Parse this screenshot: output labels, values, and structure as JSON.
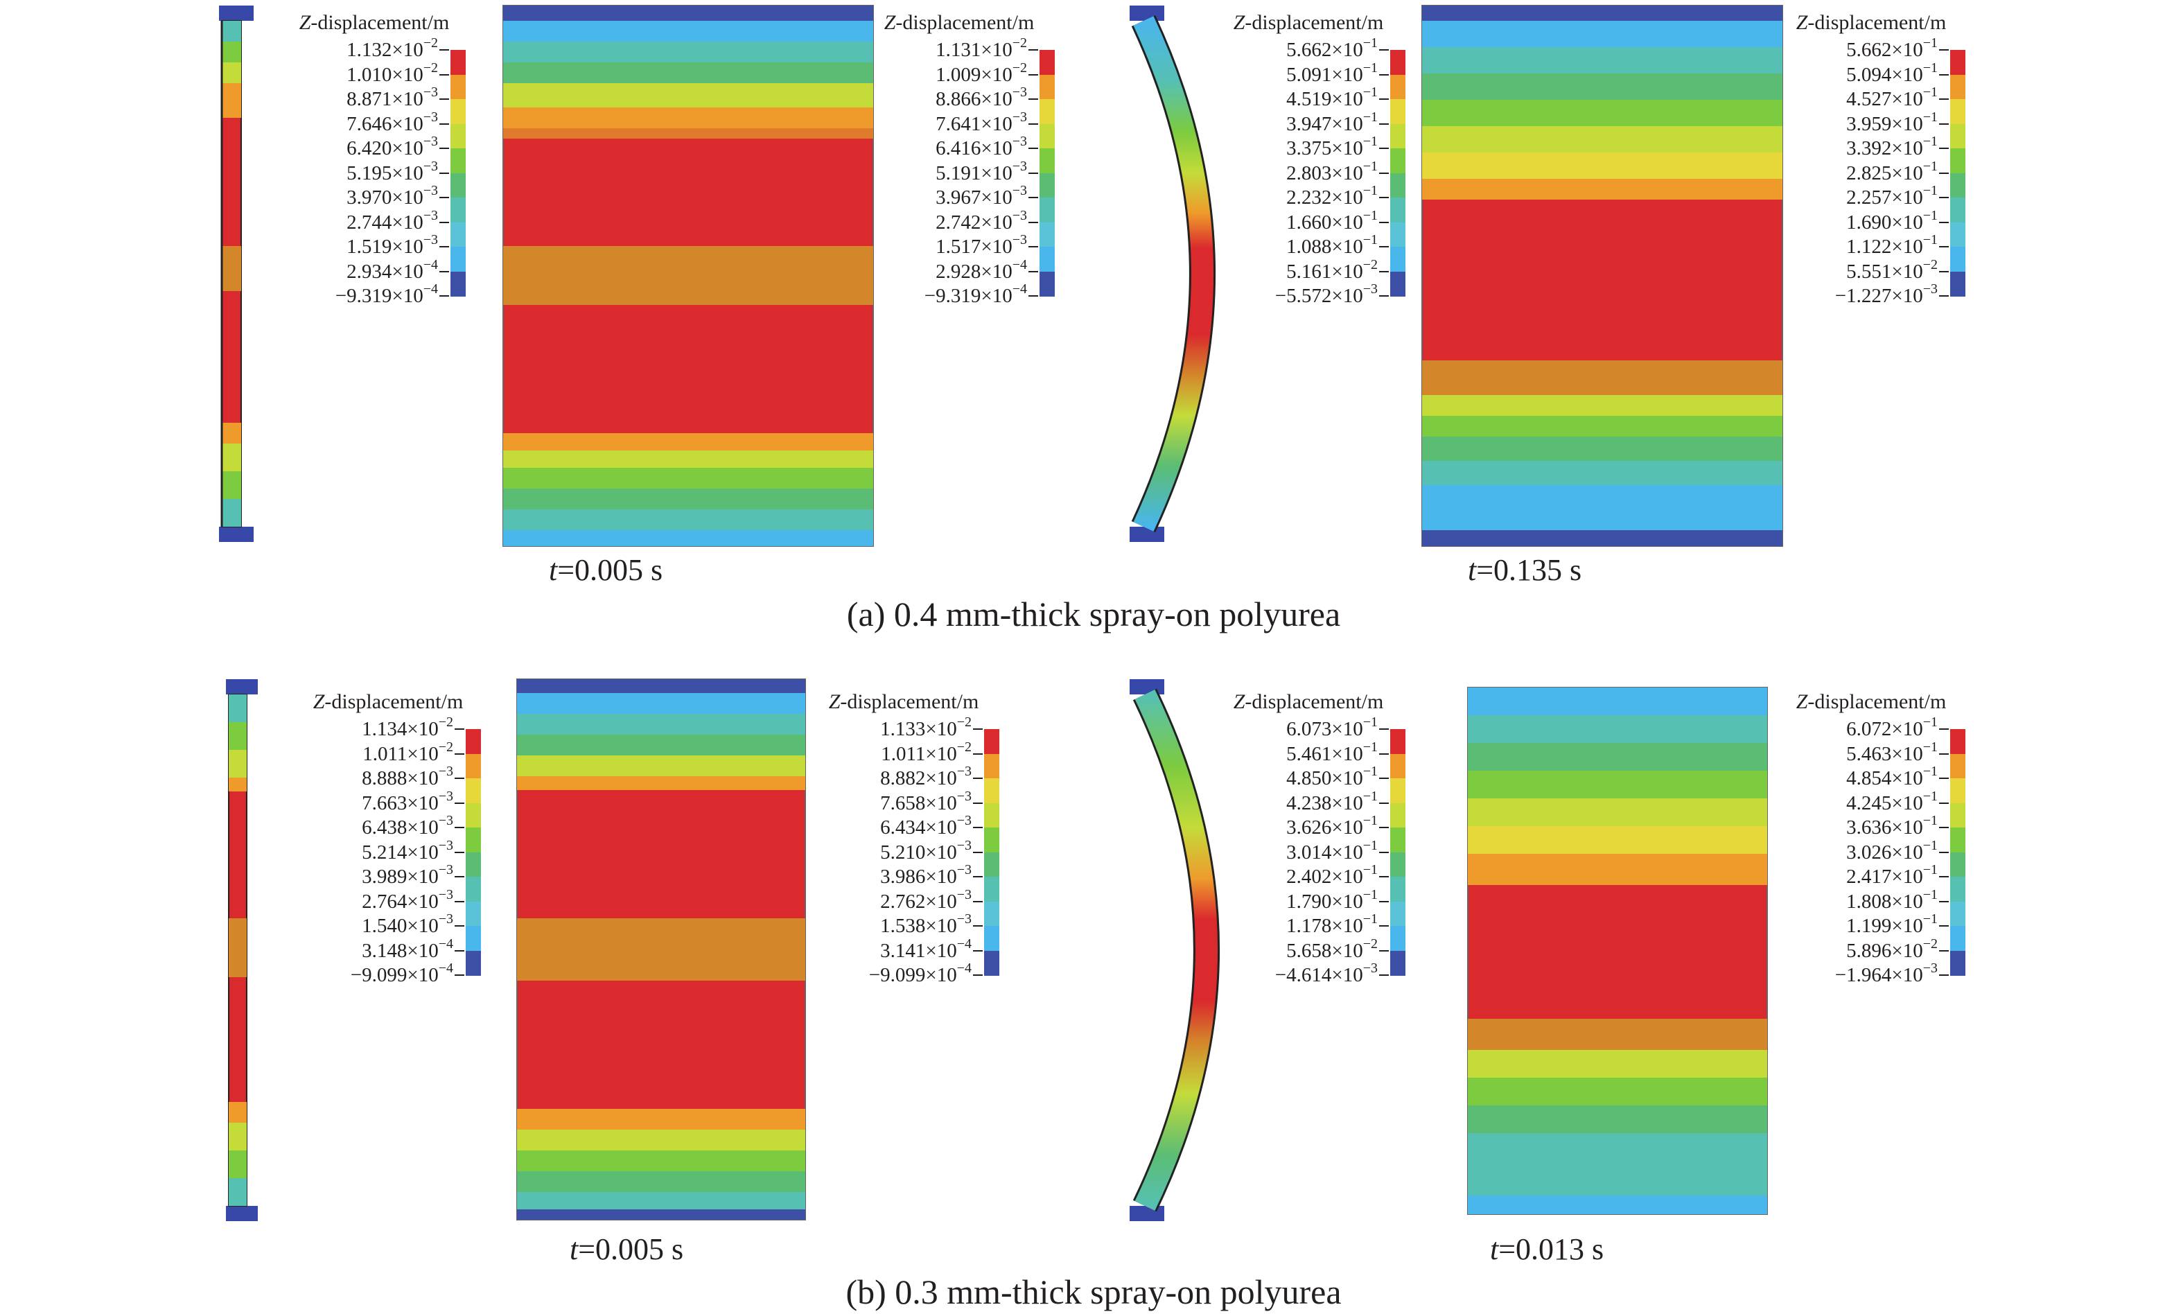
{
  "colors": {
    "scale": [
      "#da2a2d",
      "#ee9b2c",
      "#e6d83a",
      "#c4db3a",
      "#7dcb3f",
      "#5bbd73",
      "#56c0b3",
      "#5bc3d8",
      "#49b6ec",
      "#3e4fa6"
    ],
    "support": "#3848a8",
    "outline": "#222222",
    "text": "#231f20"
  },
  "legend_title_variable": "Z",
  "legend_title_rest": "-displacement/m",
  "time_label_var": "t",
  "rows": [
    {
      "caption": "(a) 0.4 mm-thick spray-on polyurea",
      "groups": [
        {
          "time": "=0.005 s",
          "side_legend": [
            {
              "m": "1.132",
              "e": "−2"
            },
            {
              "m": "1.010",
              "e": "−2"
            },
            {
              "m": "8.871",
              "e": "−3"
            },
            {
              "m": "7.646",
              "e": "−3"
            },
            {
              "m": "6.420",
              "e": "−3"
            },
            {
              "m": "5.195",
              "e": "−3"
            },
            {
              "m": "3.970",
              "e": "−3"
            },
            {
              "m": "2.744",
              "e": "−3"
            },
            {
              "m": "1.519",
              "e": "−3"
            },
            {
              "m": "2.934",
              "e": "−4"
            },
            {
              "m": "−9.319",
              "e": "−4"
            }
          ],
          "face_legend": [
            {
              "m": "1.131",
              "e": "−2"
            },
            {
              "m": "1.009",
              "e": "−2"
            },
            {
              "m": "8.866",
              "e": "−3"
            },
            {
              "m": "7.641",
              "e": "−3"
            },
            {
              "m": "6.416",
              "e": "−3"
            },
            {
              "m": "5.191",
              "e": "−3"
            },
            {
              "m": "3.967",
              "e": "−3"
            },
            {
              "m": "2.742",
              "e": "−3"
            },
            {
              "m": "1.517",
              "e": "−3"
            },
            {
              "m": "2.928",
              "e": "−4"
            },
            {
              "m": "−9.319",
              "e": "−4"
            }
          ]
        },
        {
          "time": "=0.135 s",
          "side_legend": [
            {
              "m": "5.662",
              "e": "−1"
            },
            {
              "m": "5.091",
              "e": "−1"
            },
            {
              "m": "4.519",
              "e": "−1"
            },
            {
              "m": "3.947",
              "e": "−1"
            },
            {
              "m": "3.375",
              "e": "−1"
            },
            {
              "m": "2.803",
              "e": "−1"
            },
            {
              "m": "2.232",
              "e": "−1"
            },
            {
              "m": "1.660",
              "e": "−1"
            },
            {
              "m": "1.088",
              "e": "−1"
            },
            {
              "m": "5.161",
              "e": "−2"
            },
            {
              "m": "−5.572",
              "e": "−3"
            }
          ],
          "face_legend": [
            {
              "m": "5.662",
              "e": "−1"
            },
            {
              "m": "5.094",
              "e": "−1"
            },
            {
              "m": "4.527",
              "e": "−1"
            },
            {
              "m": "3.959",
              "e": "−1"
            },
            {
              "m": "3.392",
              "e": "−1"
            },
            {
              "m": "2.825",
              "e": "−1"
            },
            {
              "m": "2.257",
              "e": "−1"
            },
            {
              "m": "1.690",
              "e": "−1"
            },
            {
              "m": "1.122",
              "e": "−1"
            },
            {
              "m": "5.551",
              "e": "−2"
            },
            {
              "m": "−1.227",
              "e": "−3"
            }
          ]
        }
      ]
    },
    {
      "caption": "(b) 0.3 mm-thick spray-on polyurea",
      "groups": [
        {
          "time": "=0.005 s",
          "side_legend": [
            {
              "m": "1.134",
              "e": "−2"
            },
            {
              "m": "1.011",
              "e": "−2"
            },
            {
              "m": "8.888",
              "e": "−3"
            },
            {
              "m": "7.663",
              "e": "−3"
            },
            {
              "m": "6.438",
              "e": "−3"
            },
            {
              "m": "5.214",
              "e": "−3"
            },
            {
              "m": "3.989",
              "e": "−3"
            },
            {
              "m": "2.764",
              "e": "−3"
            },
            {
              "m": "1.540",
              "e": "−3"
            },
            {
              "m": "3.148",
              "e": "−4"
            },
            {
              "m": "−9.099",
              "e": "−4"
            }
          ],
          "face_legend": [
            {
              "m": "1.133",
              "e": "−2"
            },
            {
              "m": "1.011",
              "e": "−2"
            },
            {
              "m": "8.882",
              "e": "−3"
            },
            {
              "m": "7.658",
              "e": "−3"
            },
            {
              "m": "6.434",
              "e": "−3"
            },
            {
              "m": "5.210",
              "e": "−3"
            },
            {
              "m": "3.986",
              "e": "−3"
            },
            {
              "m": "2.762",
              "e": "−3"
            },
            {
              "m": "1.538",
              "e": "−3"
            },
            {
              "m": "3.141",
              "e": "−4"
            },
            {
              "m": "−9.099",
              "e": "−4"
            }
          ]
        },
        {
          "time": "=0.013 s",
          "side_legend": [
            {
              "m": "6.073",
              "e": "−1"
            },
            {
              "m": "5.461",
              "e": "−1"
            },
            {
              "m": "4.850",
              "e": "−1"
            },
            {
              "m": "4.238",
              "e": "−1"
            },
            {
              "m": "3.626",
              "e": "−1"
            },
            {
              "m": "3.014",
              "e": "−1"
            },
            {
              "m": "2.402",
              "e": "−1"
            },
            {
              "m": "1.790",
              "e": "−1"
            },
            {
              "m": "1.178",
              "e": "−1"
            },
            {
              "m": "5.658",
              "e": "−2"
            },
            {
              "m": "−4.614",
              "e": "−3"
            }
          ],
          "face_legend": [
            {
              "m": "6.072",
              "e": "−1"
            },
            {
              "m": "5.463",
              "e": "−1"
            },
            {
              "m": "4.854",
              "e": "−1"
            },
            {
              "m": "4.245",
              "e": "−1"
            },
            {
              "m": "3.636",
              "e": "−1"
            },
            {
              "m": "3.026",
              "e": "−1"
            },
            {
              "m": "2.417",
              "e": "−1"
            },
            {
              "m": "1.808",
              "e": "−1"
            },
            {
              "m": "1.199",
              "e": "−1"
            },
            {
              "m": "5.896",
              "e": "−2"
            },
            {
              "m": "−1.964",
              "e": "−3"
            }
          ]
        }
      ]
    }
  ]
}
